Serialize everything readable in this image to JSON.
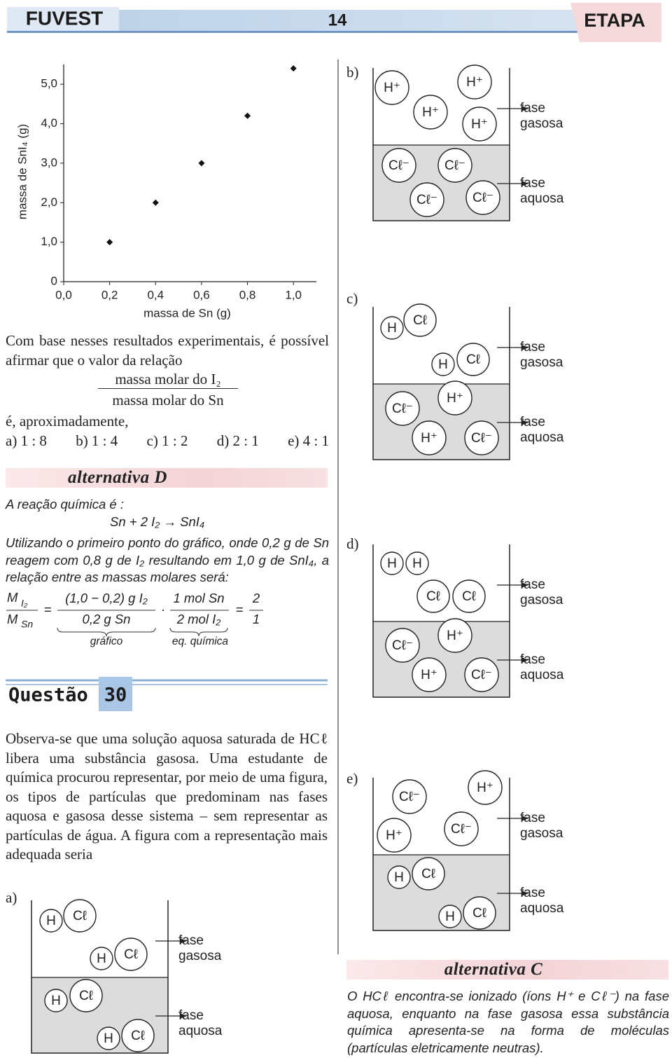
{
  "header": {
    "left": "FUVEST",
    "page": "14",
    "right": "ETAPA"
  },
  "chart_data": {
    "type": "scatter",
    "x_label": "massa de Sn (g)",
    "y_label": "massa de SnI₄ (g)",
    "x": [
      0.2,
      0.4,
      0.6,
      0.8,
      1.0
    ],
    "values": [
      1.0,
      2.0,
      3.0,
      4.2,
      5.4
    ],
    "color": "#111111",
    "marker": "diamond",
    "xlim": [
      0,
      1.1
    ],
    "ylim": [
      0,
      5.5
    ],
    "xticks": [
      {
        "value": 0,
        "label": "0,0"
      },
      {
        "value": 0.2,
        "label": "0,2"
      },
      {
        "value": 0.4,
        "label": "0,4"
      },
      {
        "value": 0.6,
        "label": "0,6"
      },
      {
        "value": 0.8,
        "label": "0,8"
      },
      {
        "value": 1.0,
        "label": "1,0"
      }
    ],
    "yticks": [
      0,
      {
        "value": 1,
        "label": "1,0"
      },
      {
        "value": 2,
        "label": "2,0"
      },
      {
        "value": 3,
        "label": "3,0"
      },
      {
        "value": 4,
        "label": "4,0"
      },
      {
        "value": 5,
        "label": "5,0"
      }
    ]
  },
  "question29": {
    "intro": "Com base nesses resultados experimentais, é possível afirmar que o valor da relação",
    "fraction_num": "massa molar do I₂",
    "fraction_den": "massa molar do Sn",
    "outro": "é, aproximadamente,",
    "options": [
      "a) 1 : 8",
      "b) 1 : 4",
      "c) 1 : 2",
      "d) 2 : 1",
      "e) 4 : 1"
    ]
  },
  "answer29": {
    "heading": "alternativa D",
    "intro": "A reação química é :",
    "equation": "Sn + 2 I₂ → SnI₄",
    "explanation": "Utilizando o primeiro ponto do gráfico, onde 0,2 g de Sn reagem com 0,8 g de I₂ resultando em 1,0 g de SnI₄, a relação entre as massas molares será:",
    "formula": {
      "m_num": "M",
      "m_num_sub": "I₂",
      "m_den": "M",
      "m_den_sub": "Sn",
      "eq1": "=",
      "frac1_num": "(1,0 − 0,2) g I₂",
      "frac1_den": "0,2 g Sn",
      "dot": "·",
      "frac2_num": "1 mol Sn",
      "frac2_den": "2 mol I₂",
      "eq2": "=",
      "result_num": "2",
      "result_den": "1",
      "brace1": "gráfico",
      "brace2": "eq. química"
    }
  },
  "question30": {
    "title": "Questão",
    "number": "30",
    "text": "Observa-se que uma solução aquosa saturada de HCℓ libera uma substância gasosa. Uma estudante de química procurou representar, por meio de uma figura, os tipos de partículas que predominam nas fases aquosa e gasosa desse sistema – sem representar as partículas de água. A figura com a representação mais adequada seria",
    "diagrams": [
      {
        "label": "a)",
        "gas": "fase gasosa",
        "aqueous": "fase aquosa",
        "particles": [
          "H",
          "Cℓ",
          "H",
          "Cℓ",
          "H",
          "Cℓ",
          "H",
          "Cℓ"
        ]
      },
      {
        "label": "b)",
        "gas": "fase gasosa",
        "aqueous": "fase aquosa",
        "particles": [
          "H⁺",
          "H⁺",
          "H⁺",
          "H⁺",
          "Cℓ⁻",
          "Cℓ⁻",
          "Cℓ⁻",
          "Cℓ⁻"
        ]
      },
      {
        "label": "c)",
        "gas": "fase gasosa",
        "aqueous": "fase aquosa",
        "particles": [
          "H",
          "Cℓ",
          "H",
          "Cℓ",
          "Cℓ⁻",
          "H⁺",
          "H⁺",
          "Cℓ⁻"
        ]
      },
      {
        "label": "d)",
        "gas": "fase gasosa",
        "aqueous": "fase aquosa",
        "particles": [
          "H",
          "H",
          "Cℓ",
          "Cℓ",
          "Cℓ⁻",
          "H⁺",
          "H⁺",
          "Cℓ⁻"
        ]
      },
      {
        "label": "e)",
        "gas": "fase gasosa",
        "aqueous": "fase aquosa",
        "particles": [
          "Cℓ⁻",
          "H⁺",
          "H⁺",
          "Cℓ⁻",
          "H",
          "Cℓ",
          "H",
          "Cℓ"
        ]
      }
    ]
  },
  "answer30": {
    "heading": "alternativa C",
    "text": "O HCℓ encontra-se ionizado (íons H⁺ e Cℓ⁻) na fase aquosa, enquanto na fase gasosa essa substância química apresenta-se na forma de moléculas (partículas eletricamente neutras)."
  }
}
